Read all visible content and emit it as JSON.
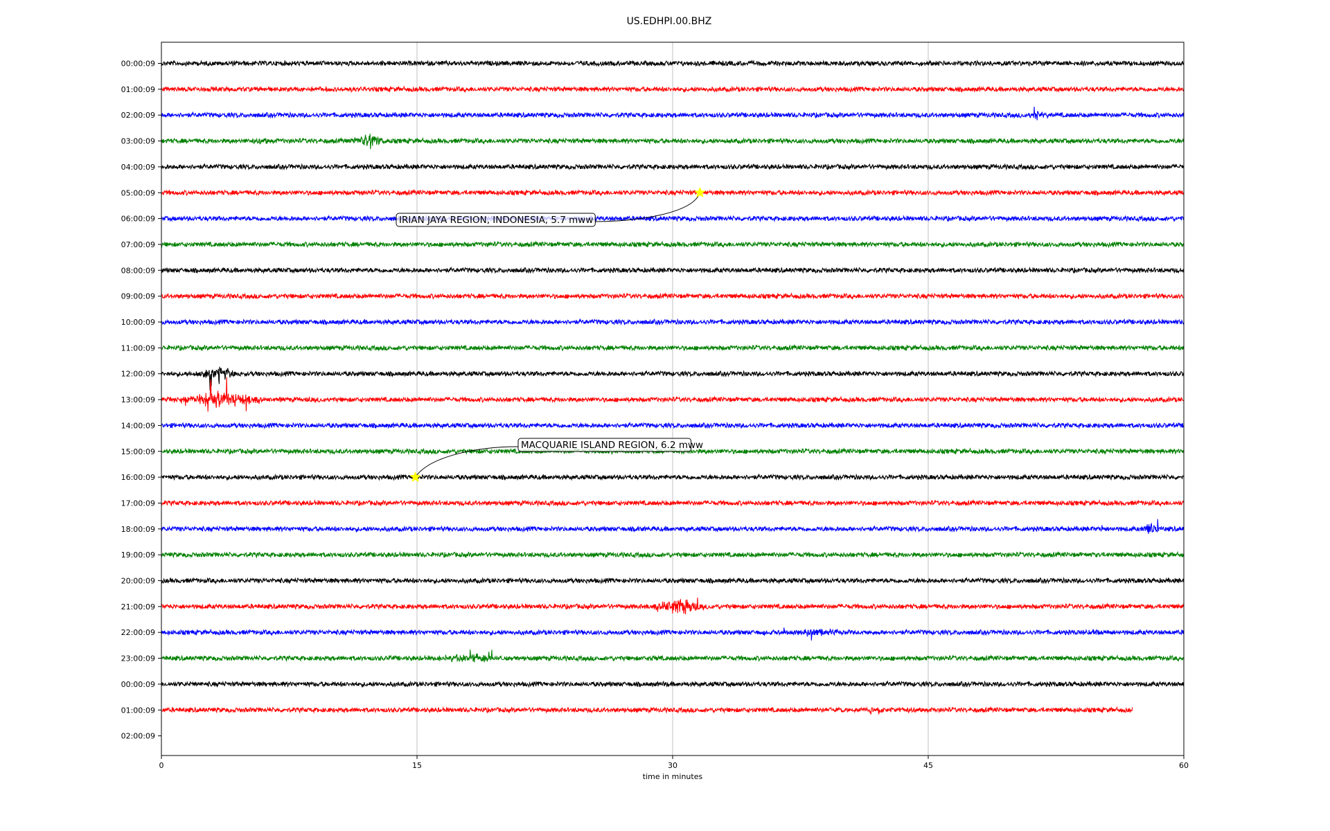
{
  "chart_data": {
    "type": "line",
    "title": "US.EDHPI.00.BHZ",
    "xlabel": "time in minutes",
    "ylabel": "",
    "xlim": [
      0,
      60
    ],
    "xticks": [
      0,
      15,
      30,
      45,
      60
    ],
    "grid": "vertical lines at x ticks",
    "trace_colors": [
      "#000000",
      "#ff0000",
      "#0000ff",
      "#008000"
    ],
    "row_labels": [
      "00:00:09",
      "01:00:09",
      "02:00:09",
      "03:00:09",
      "04:00:09",
      "05:00:09",
      "06:00:09",
      "07:00:09",
      "08:00:09",
      "09:00:09",
      "10:00:09",
      "11:00:09",
      "12:00:09",
      "13:00:09",
      "14:00:09",
      "15:00:09",
      "16:00:09",
      "17:00:09",
      "18:00:09",
      "19:00:09",
      "20:00:09",
      "21:00:09",
      "22:00:09",
      "23:00:09",
      "00:00:09",
      "01:00:09",
      "02:00:09"
    ],
    "traces": [
      {
        "row": 0,
        "end": 60,
        "bursts": []
      },
      {
        "row": 1,
        "end": 60,
        "bursts": []
      },
      {
        "row": 2,
        "end": 60,
        "bursts": [
          {
            "start": 50.3,
            "end": 52.6,
            "amp": 18
          }
        ]
      },
      {
        "row": 3,
        "end": 60,
        "bursts": [
          {
            "start": 5.2,
            "end": 6.8,
            "amp": 14
          },
          {
            "start": 10.9,
            "end": 13.5,
            "amp": 30
          },
          {
            "start": 33.0,
            "end": 33.4,
            "amp": 6
          }
        ]
      },
      {
        "row": 4,
        "end": 60,
        "bursts": []
      },
      {
        "row": 5,
        "end": 60,
        "bursts": [
          {
            "start": 11.5,
            "end": 11.8,
            "amp": 10
          }
        ]
      },
      {
        "row": 6,
        "end": 60,
        "bursts": [
          {
            "start": 20.0,
            "end": 20.2,
            "amp": 5
          }
        ]
      },
      {
        "row": 7,
        "end": 60,
        "bursts": [
          {
            "start": 19.1,
            "end": 19.3,
            "amp": 10
          }
        ]
      },
      {
        "row": 8,
        "end": 60,
        "bursts": []
      },
      {
        "row": 9,
        "end": 60,
        "bursts": []
      },
      {
        "row": 10,
        "end": 60,
        "bursts": []
      },
      {
        "row": 11,
        "end": 60,
        "bursts": []
      },
      {
        "row": 12,
        "end": 60,
        "bursts": [
          {
            "start": 1.5,
            "end": 5.2,
            "amp": 28
          }
        ]
      },
      {
        "row": 13,
        "end": 60,
        "bursts": [
          {
            "start": 0.2,
            "end": 7.0,
            "amp": 32
          },
          {
            "start": 8.2,
            "end": 10.0,
            "amp": 10
          }
        ]
      },
      {
        "row": 14,
        "end": 60,
        "bursts": []
      },
      {
        "row": 15,
        "end": 60,
        "bursts": []
      },
      {
        "row": 16,
        "end": 60,
        "bursts": []
      },
      {
        "row": 17,
        "end": 60,
        "bursts": []
      },
      {
        "row": 18,
        "end": 60,
        "bursts": [
          {
            "start": 27.8,
            "end": 28.2,
            "amp": 8
          },
          {
            "start": 30.2,
            "end": 30.6,
            "amp": 6
          },
          {
            "start": 55.0,
            "end": 55.4,
            "amp": 8
          },
          {
            "start": 57.4,
            "end": 58.8,
            "amp": 30
          }
        ]
      },
      {
        "row": 19,
        "end": 60,
        "bursts": [
          {
            "start": 54.8,
            "end": 55.2,
            "amp": 5
          }
        ]
      },
      {
        "row": 20,
        "end": 60,
        "bursts": []
      },
      {
        "row": 21,
        "end": 60,
        "bursts": [
          {
            "start": 28.2,
            "end": 32.5,
            "amp": 34
          }
        ]
      },
      {
        "row": 22,
        "end": 60,
        "bursts": [
          {
            "start": 35.2,
            "end": 42.0,
            "amp": 16
          },
          {
            "start": 53.8,
            "end": 55.7,
            "amp": 12
          }
        ]
      },
      {
        "row": 23,
        "end": 60,
        "bursts": [
          {
            "start": 13.2,
            "end": 13.5,
            "amp": 14
          },
          {
            "start": 16.0,
            "end": 20.8,
            "amp": 18
          },
          {
            "start": 28.6,
            "end": 29.2,
            "amp": 12
          }
        ]
      },
      {
        "row": 24,
        "end": 60,
        "bursts": [
          {
            "start": 1.8,
            "end": 2.5,
            "amp": 8
          },
          {
            "start": 29.3,
            "end": 29.7,
            "amp": 10
          }
        ]
      },
      {
        "row": 25,
        "end": 57.0,
        "bursts": [
          {
            "start": 39.0,
            "end": 45.5,
            "amp": 10
          }
        ]
      }
    ],
    "events": [
      {
        "label": "IRIAN JAYA REGION, INDONESIA, 5.7 mww",
        "row": 5,
        "minute": 31.6
      },
      {
        "label": "MACQUARIE ISLAND REGION, 6.2 mww",
        "row": 16,
        "minute": 14.9
      }
    ]
  },
  "colors": {
    "marker": "#ffff00",
    "grid": "#b0b0b0",
    "annotation_box": "#ffffff"
  }
}
